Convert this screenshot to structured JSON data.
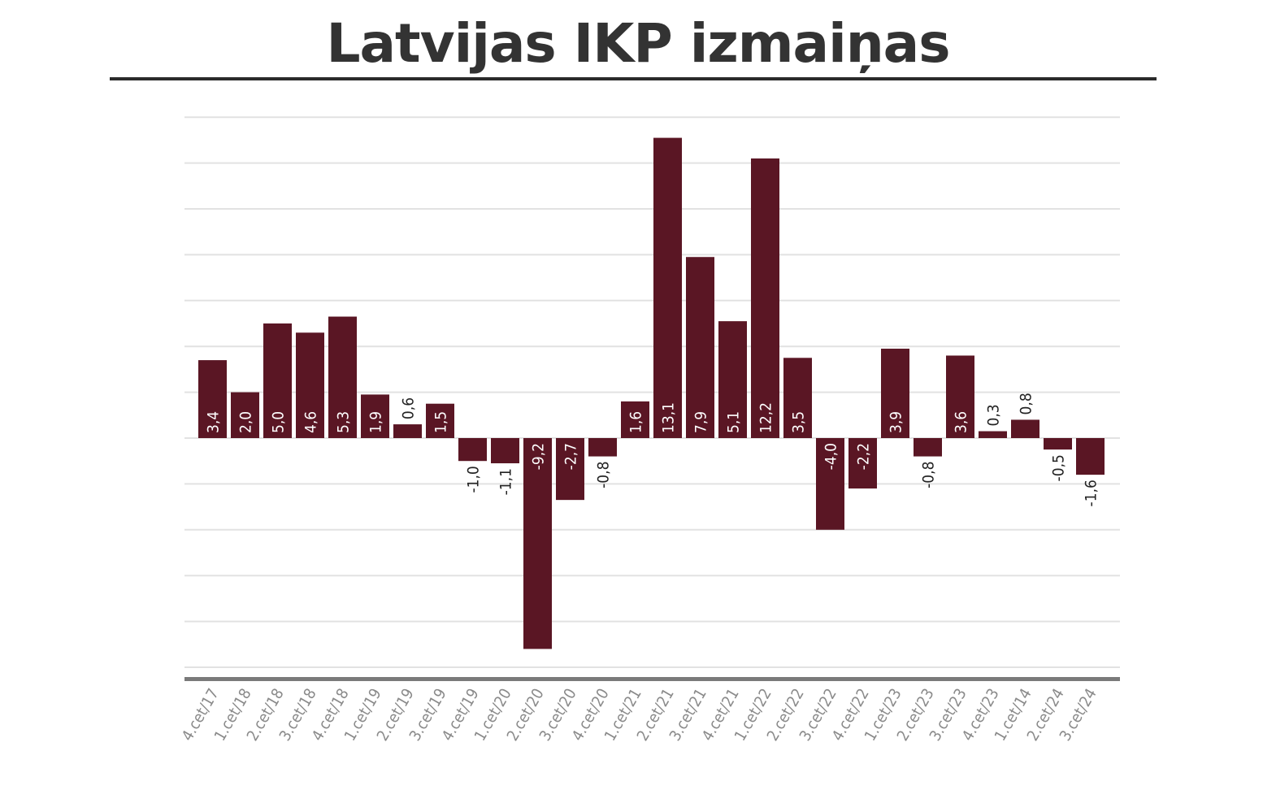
{
  "title": "Latvijas IKP izmaiņas",
  "colors": {
    "bar": "#5a1624",
    "grid": "#e2e2e2",
    "axis": "#7a7a7a",
    "title": "#333333",
    "label_dark": "#222222",
    "tick": "#8a8a8a"
  },
  "chart_data": {
    "type": "bar",
    "title": "Latvijas IKP izmaiņas",
    "xlabel": "",
    "ylabel": "",
    "grid": true,
    "legend": "none",
    "ylim": [
      -12.5,
      14
    ],
    "categories": [
      "4.cet/17",
      "1.cet/18",
      "2.cet/18",
      "3.cet/18",
      "4.cet/18",
      "1.cet/19",
      "2.cet/19",
      "3.cet/19",
      "4.cet/19",
      "1.cet/20",
      "2.cet/20",
      "3.cet/20",
      "4.cet/20",
      "1.cet/21",
      "2.cet/21",
      "3.cet/21",
      "4.cet/21",
      "1.cet/22",
      "2.cet/22",
      "3.cet/22",
      "4.cet/22",
      "1.cet/23",
      "2.cet/23",
      "3.cet/23",
      "4.cet/23",
      "1.cet/14",
      "2.cet/24",
      "3.cet/24"
    ],
    "values": [
      3.4,
      2.0,
      5.0,
      4.6,
      5.3,
      1.9,
      0.6,
      1.5,
      -1.0,
      -1.1,
      -9.2,
      -2.7,
      -0.8,
      1.6,
      13.1,
      7.9,
      5.1,
      12.2,
      3.5,
      -4.0,
      -2.2,
      3.9,
      -0.8,
      3.6,
      0.3,
      0.8,
      -0.5,
      -1.6
    ],
    "labels": [
      "3,4",
      "2,0",
      "5,0",
      "4,6",
      "5,3",
      "1,9",
      "0,6",
      "1,5",
      "-1,0",
      "-1,1",
      "-9,2",
      "-2,7",
      "-0,8",
      "1,6",
      "13,1",
      "7,9",
      "5,1",
      "12,2",
      "3,5",
      "-4,0",
      "-2,2",
      "3,9",
      "-0,8",
      "3,6",
      "0,3",
      "0,8",
      "-0,5",
      "-1,6"
    ]
  }
}
